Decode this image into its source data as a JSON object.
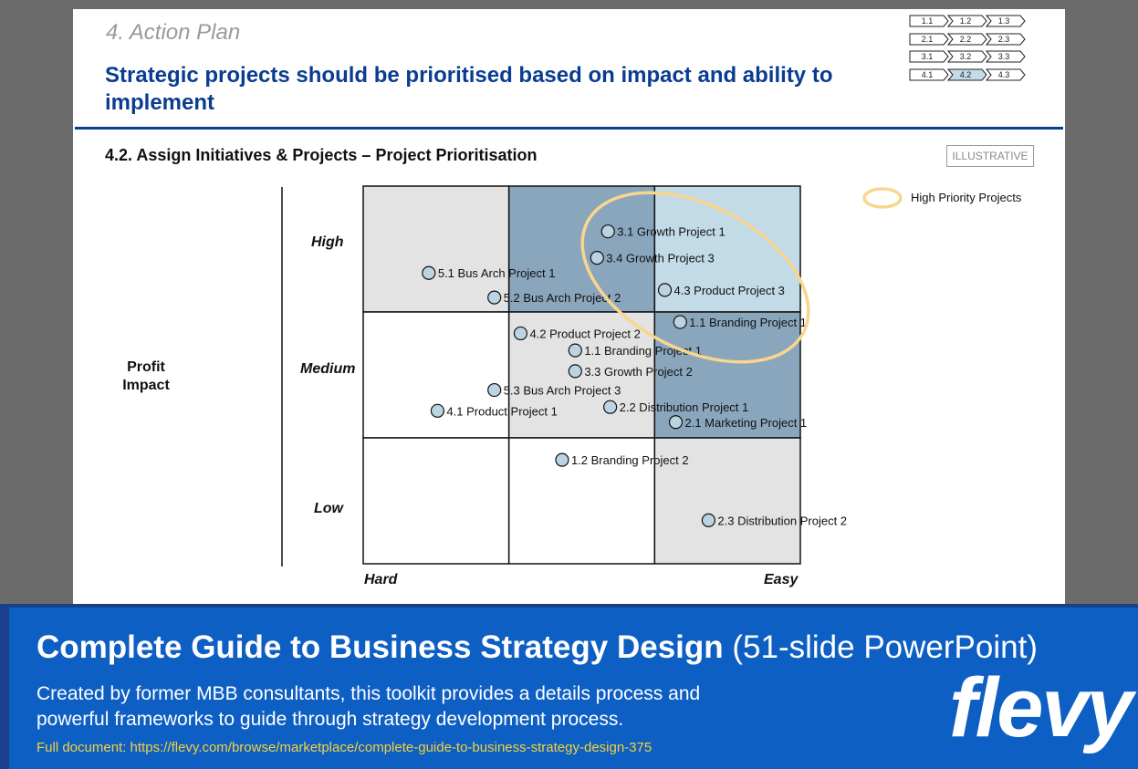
{
  "slide": {
    "section": "4. Action Plan",
    "headline": "Strategic projects should be prioritised based on impact and ability to implement",
    "subheading": "4.2. Assign Initiatives & Projects – Project Prioritisation",
    "stamp": "ILLUSTRATIVE",
    "nav": [
      [
        "1.1",
        "1.2",
        "1.3"
      ],
      [
        "2.1",
        "2.2",
        "2.3"
      ],
      [
        "3.1",
        "3.2",
        "3.3"
      ],
      [
        "4.1",
        "4.2",
        "4.3"
      ]
    ],
    "nav_active": "4.2",
    "legend": "High Priority Projects",
    "y_axis_lines": [
      "Profit",
      "Impact"
    ],
    "levels": {
      "high": "High",
      "medium": "Medium",
      "low": "Low"
    },
    "x_axis": {
      "left": "Hard",
      "right": "Easy"
    }
  },
  "matrix": {
    "cell_colors": {
      "white": "#ffffff",
      "light_gray": "#e3e3e3",
      "steel_blue": "#8aa6bd",
      "pale_blue": "#c2dbe7"
    },
    "grid": [
      [
        "light_gray",
        "steel_blue",
        "pale_blue"
      ],
      [
        "white",
        "light_gray",
        "steel_blue"
      ],
      [
        "white",
        "white",
        "light_gray"
      ]
    ],
    "highlight_color": "#f8d68e",
    "marker_color": "#bcd3e2",
    "projects": [
      {
        "label": "3.1 Growth Project 1",
        "ease": 0.56,
        "impact": 0.88
      },
      {
        "label": "3.4 Growth Project 3",
        "ease": 0.535,
        "impact": 0.81
      },
      {
        "label": "5.1 Bus Arch Project 1",
        "ease": 0.15,
        "impact": 0.77
      },
      {
        "label": "4.3 Product Project 3",
        "ease": 0.69,
        "impact": 0.725
      },
      {
        "label": "5.2 Bus Arch Project 2",
        "ease": 0.3,
        "impact": 0.705
      },
      {
        "label": "1.1 Branding Project 1",
        "ease": 0.725,
        "impact": 0.64
      },
      {
        "label": "4.2 Product Project 2",
        "ease": 0.36,
        "impact": 0.61
      },
      {
        "label": "1.1 Branding Project 1",
        "ease": 0.485,
        "impact": 0.565
      },
      {
        "label": "3.3 Growth Project 2",
        "ease": 0.485,
        "impact": 0.51
      },
      {
        "label": "5.3 Bus Arch Project 3",
        "ease": 0.3,
        "impact": 0.46
      },
      {
        "label": "4.1 Product Project 1",
        "ease": 0.17,
        "impact": 0.405
      },
      {
        "label": "2.2 Distribution Project 1",
        "ease": 0.565,
        "impact": 0.415
      },
      {
        "label": "2.1 Marketing Project 1",
        "ease": 0.715,
        "impact": 0.375
      },
      {
        "label": "1.2 Branding Project 2",
        "ease": 0.455,
        "impact": 0.275
      },
      {
        "label": "2.3 Distribution Project 2",
        "ease": 0.79,
        "impact": 0.115
      }
    ]
  },
  "footer": {
    "title_bold": "Complete Guide to Business Strategy Design",
    "title_light": " (51-slide PowerPoint)",
    "description": "Created by former MBB consultants, this toolkit provides a details process and powerful frameworks to guide through strategy development process.",
    "link": "Full document: https://flevy.com/browse/marketplace/complete-guide-to-business-strategy-design-375",
    "brand": "flevy"
  }
}
